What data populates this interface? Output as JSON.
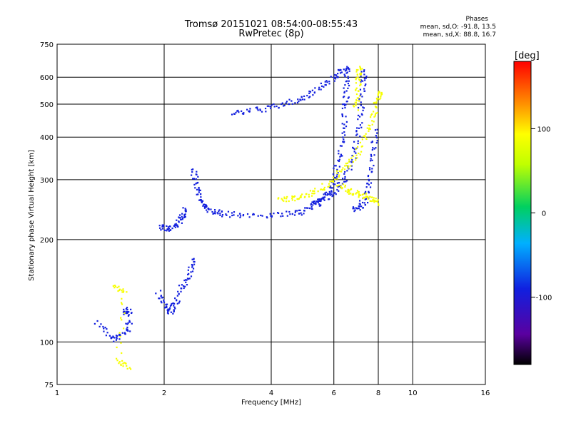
{
  "chart_data": {
    "type": "scatter",
    "title": "Tromsø 20151021 08:54:00-08:55:43",
    "subtitle": "RwPretec (8p)",
    "xlabel": "Frequency [MHz]",
    "ylabel": "Stationary phase Virtual Height [km]",
    "x_scale": "log",
    "y_scale": "log",
    "xlim": [
      1,
      16
    ],
    "ylim": [
      75,
      750
    ],
    "x_ticks": [
      1,
      2,
      4,
      6,
      8,
      10,
      16
    ],
    "y_ticks": [
      75,
      100,
      200,
      300,
      400,
      500,
      600,
      750
    ],
    "grid": true,
    "colorbar": {
      "label": "[deg]",
      "range": [
        -180,
        180
      ],
      "ticks": [
        100,
        0,
        -100
      ]
    },
    "legend": {
      "title": "Phases",
      "o_mode": "mean, sd,O: -91.8, 13.5",
      "x_mode": "mean, sd,X: 88.8, 16.7"
    },
    "series": [
      {
        "name": "O",
        "phase_mean": -91.8,
        "traces": [
          {
            "points": [
              [
                1.3,
                115
              ],
              [
                1.42,
                102
              ],
              [
                1.5,
                104
              ],
              [
                1.6,
                110
              ],
              [
                1.55,
                125
              ],
              [
                1.62,
                122
              ]
            ]
          },
          {
            "points": [
              [
                1.92,
                140
              ],
              [
                2.0,
                128
              ],
              [
                2.08,
                122
              ],
              [
                2.16,
                130
              ],
              [
                2.25,
                145
              ],
              [
                2.35,
                160
              ],
              [
                2.42,
                175
              ]
            ]
          },
          {
            "points": [
              [
                1.95,
                218
              ],
              [
                2.05,
                214
              ],
              [
                2.15,
                220
              ],
              [
                2.25,
                232
              ],
              [
                2.3,
                245
              ]
            ]
          },
          {
            "points": [
              [
                2.42,
                320
              ],
              [
                2.46,
                290
              ],
              [
                2.52,
                265
              ],
              [
                2.6,
                250
              ],
              [
                2.72,
                242
              ],
              [
                2.9,
                238
              ],
              [
                3.3,
                236
              ],
              [
                4.0,
                236
              ],
              [
                4.6,
                238
              ],
              [
                5.0,
                244
              ],
              [
                5.5,
                256
              ],
              [
                6.0,
                275
              ],
              [
                6.4,
                300
              ],
              [
                6.8,
                340
              ],
              [
                7.0,
                400
              ],
              [
                7.15,
                480
              ],
              [
                7.25,
                560
              ],
              [
                7.3,
                630
              ]
            ]
          },
          {
            "points": [
              [
                3.1,
                468
              ],
              [
                3.5,
                478
              ],
              [
                4.0,
                488
              ],
              [
                4.5,
                505
              ],
              [
                5.0,
                525
              ],
              [
                5.5,
                560
              ],
              [
                6.0,
                600
              ],
              [
                6.3,
                625
              ],
              [
                6.6,
                635
              ]
            ]
          },
          {
            "points": [
              [
                5.2,
                255
              ],
              [
                5.5,
                262
              ],
              [
                5.8,
                275
              ],
              [
                6.0,
                300
              ],
              [
                6.2,
                340
              ],
              [
                6.35,
                400
              ],
              [
                6.45,
                480
              ],
              [
                6.5,
                550
              ],
              [
                6.55,
                620
              ]
            ]
          },
          {
            "points": [
              [
                6.8,
                245
              ],
              [
                7.1,
                250
              ],
              [
                7.4,
                265
              ],
              [
                7.6,
                300
              ],
              [
                7.75,
                360
              ],
              [
                7.85,
                420
              ]
            ]
          }
        ]
      },
      {
        "name": "X",
        "phase_mean": 88.8,
        "traces": [
          {
            "points": [
              [
                1.45,
                145
              ],
              [
                1.55,
                140
              ],
              [
                1.48,
                88
              ],
              [
                1.6,
                84
              ]
            ]
          },
          {
            "points": [
              [
                4.2,
                262
              ],
              [
                4.6,
                265
              ],
              [
                5.0,
                270
              ],
              [
                5.5,
                282
              ],
              [
                6.0,
                300
              ],
              [
                6.5,
                330
              ],
              [
                7.0,
                360
              ],
              [
                7.5,
                420
              ],
              [
                7.8,
                470
              ],
              [
                8.0,
                520
              ],
              [
                8.05,
                545
              ]
            ]
          },
          {
            "points": [
              [
                6.2,
                290
              ],
              [
                6.6,
                278
              ],
              [
                7.0,
                272
              ],
              [
                7.4,
                268
              ],
              [
                7.7,
                262
              ],
              [
                8.0,
                255
              ]
            ]
          },
          {
            "points": [
              [
                6.9,
                480
              ],
              [
                7.0,
                540
              ],
              [
                7.05,
                600
              ],
              [
                7.1,
                645
              ]
            ]
          }
        ]
      }
    ]
  }
}
